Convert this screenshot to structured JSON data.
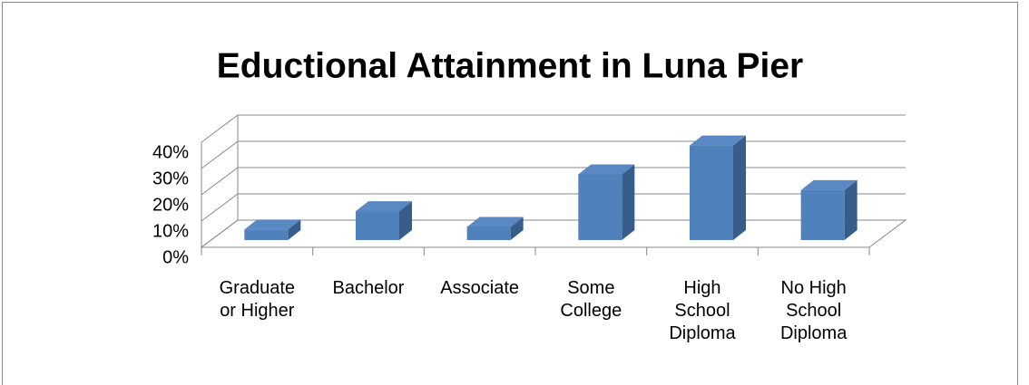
{
  "chart_data": {
    "type": "bar3d",
    "title": "Eductional Attainment in Luna Pier",
    "categories": [
      "Graduate or Higher",
      "Bachelor",
      "Associate",
      "Some College",
      "High School Diploma",
      "No High School Diploma"
    ],
    "values": [
      4,
      11,
      5,
      25,
      36,
      19
    ],
    "color": "#4f81bd",
    "ylim": [
      0,
      40
    ],
    "yticks": [
      {
        "value": 0,
        "label": "0%"
      },
      {
        "value": 10,
        "label": "10%"
      },
      {
        "value": 20,
        "label": "20%"
      },
      {
        "value": 30,
        "label": "30%"
      },
      {
        "value": 40,
        "label": "40%"
      }
    ],
    "grid": true
  }
}
